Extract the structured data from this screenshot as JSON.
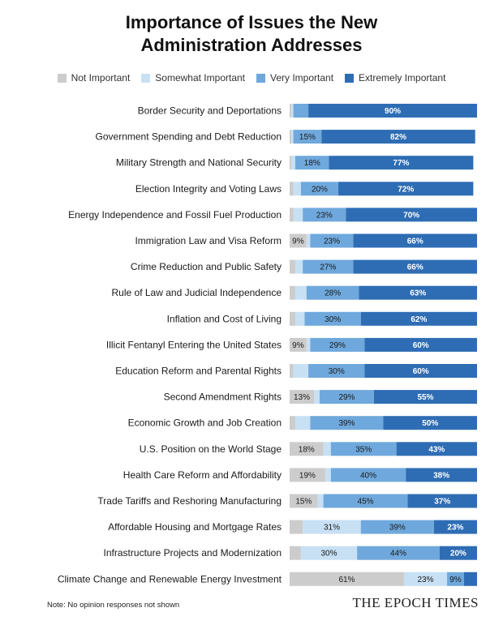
{
  "chart_data": {
    "type": "bar",
    "orientation": "horizontal",
    "stacked": true,
    "title": [
      "Importance of Issues the New",
      "Administration Addresses"
    ],
    "legend_position": "top",
    "xlim": [
      0,
      100
    ],
    "categories": [
      "Border Security and Deportations",
      "Government Spending and Debt Reduction",
      "Military Strength and National Security",
      "Election Integrity and Voting Laws",
      "Energy Independence and Fossil Fuel Production",
      "Immigration Law and Visa Reform",
      "Crime Reduction and Public Safety",
      "Rule of Law and Judicial Independence",
      "Inflation and Cost of Living",
      "Illicit Fentanyl Entering the United States",
      "Education Reform and Parental Rights",
      "Second Amendment Rights",
      "Economic Growth and Job Creation",
      "U.S. Position on the World Stage",
      "Health Care Reform and Affordability",
      "Trade Tariffs and Reshoring Manufacturing",
      "Affordable Housing and Mortgage Rates",
      "Infrastructure Projects and Modernization",
      "Climate Change and Renewable Energy Investment"
    ],
    "series": [
      {
        "name": "Not Important",
        "color": "#cccccc",
        "values": [
          1,
          1,
          1,
          2,
          2,
          9,
          3,
          3,
          3,
          9,
          2,
          13,
          3,
          18,
          19,
          15,
          7,
          6,
          61
        ],
        "labels": [
          "",
          "",
          "",
          "",
          "",
          "9%",
          "",
          "",
          "",
          "9%",
          "",
          "13%",
          "",
          "18%",
          "19%",
          "15%",
          "",
          "",
          "61%"
        ]
      },
      {
        "name": "Somewhat Important",
        "color": "#c8e0f4",
        "values": [
          1,
          1,
          2,
          4,
          5,
          2,
          4,
          6,
          5,
          2,
          8,
          3,
          8,
          4,
          3,
          3,
          31,
          30,
          23
        ],
        "labels": [
          "",
          "",
          "",
          "",
          "",
          "",
          "",
          "",
          "",
          "",
          "",
          "",
          "",
          "",
          "",
          "",
          "31%",
          "30%",
          "23%"
        ]
      },
      {
        "name": "Very Important",
        "color": "#6fa8dc",
        "values": [
          8,
          15,
          18,
          20,
          23,
          23,
          27,
          28,
          30,
          29,
          30,
          29,
          39,
          35,
          40,
          45,
          39,
          44,
          9
        ],
        "labels": [
          "",
          "15%",
          "18%",
          "20%",
          "23%",
          "23%",
          "27%",
          "28%",
          "30%",
          "29%",
          "30%",
          "29%",
          "39%",
          "35%",
          "40%",
          "45%",
          "39%",
          "44%",
          "9%"
        ]
      },
      {
        "name": "Extremely Important",
        "color": "#2e6db4",
        "values": [
          90,
          82,
          77,
          72,
          70,
          66,
          66,
          63,
          62,
          60,
          60,
          55,
          50,
          43,
          38,
          37,
          23,
          20,
          7
        ],
        "labels": [
          "90%",
          "82%",
          "77%",
          "72%",
          "70%",
          "66%",
          "66%",
          "63%",
          "62%",
          "60%",
          "60%",
          "55%",
          "50%",
          "43%",
          "38%",
          "37%",
          "23%",
          "20%",
          ""
        ]
      }
    ]
  },
  "note": "Note: No opinion responses not shown",
  "brand": "THE EPOCH TIMES"
}
